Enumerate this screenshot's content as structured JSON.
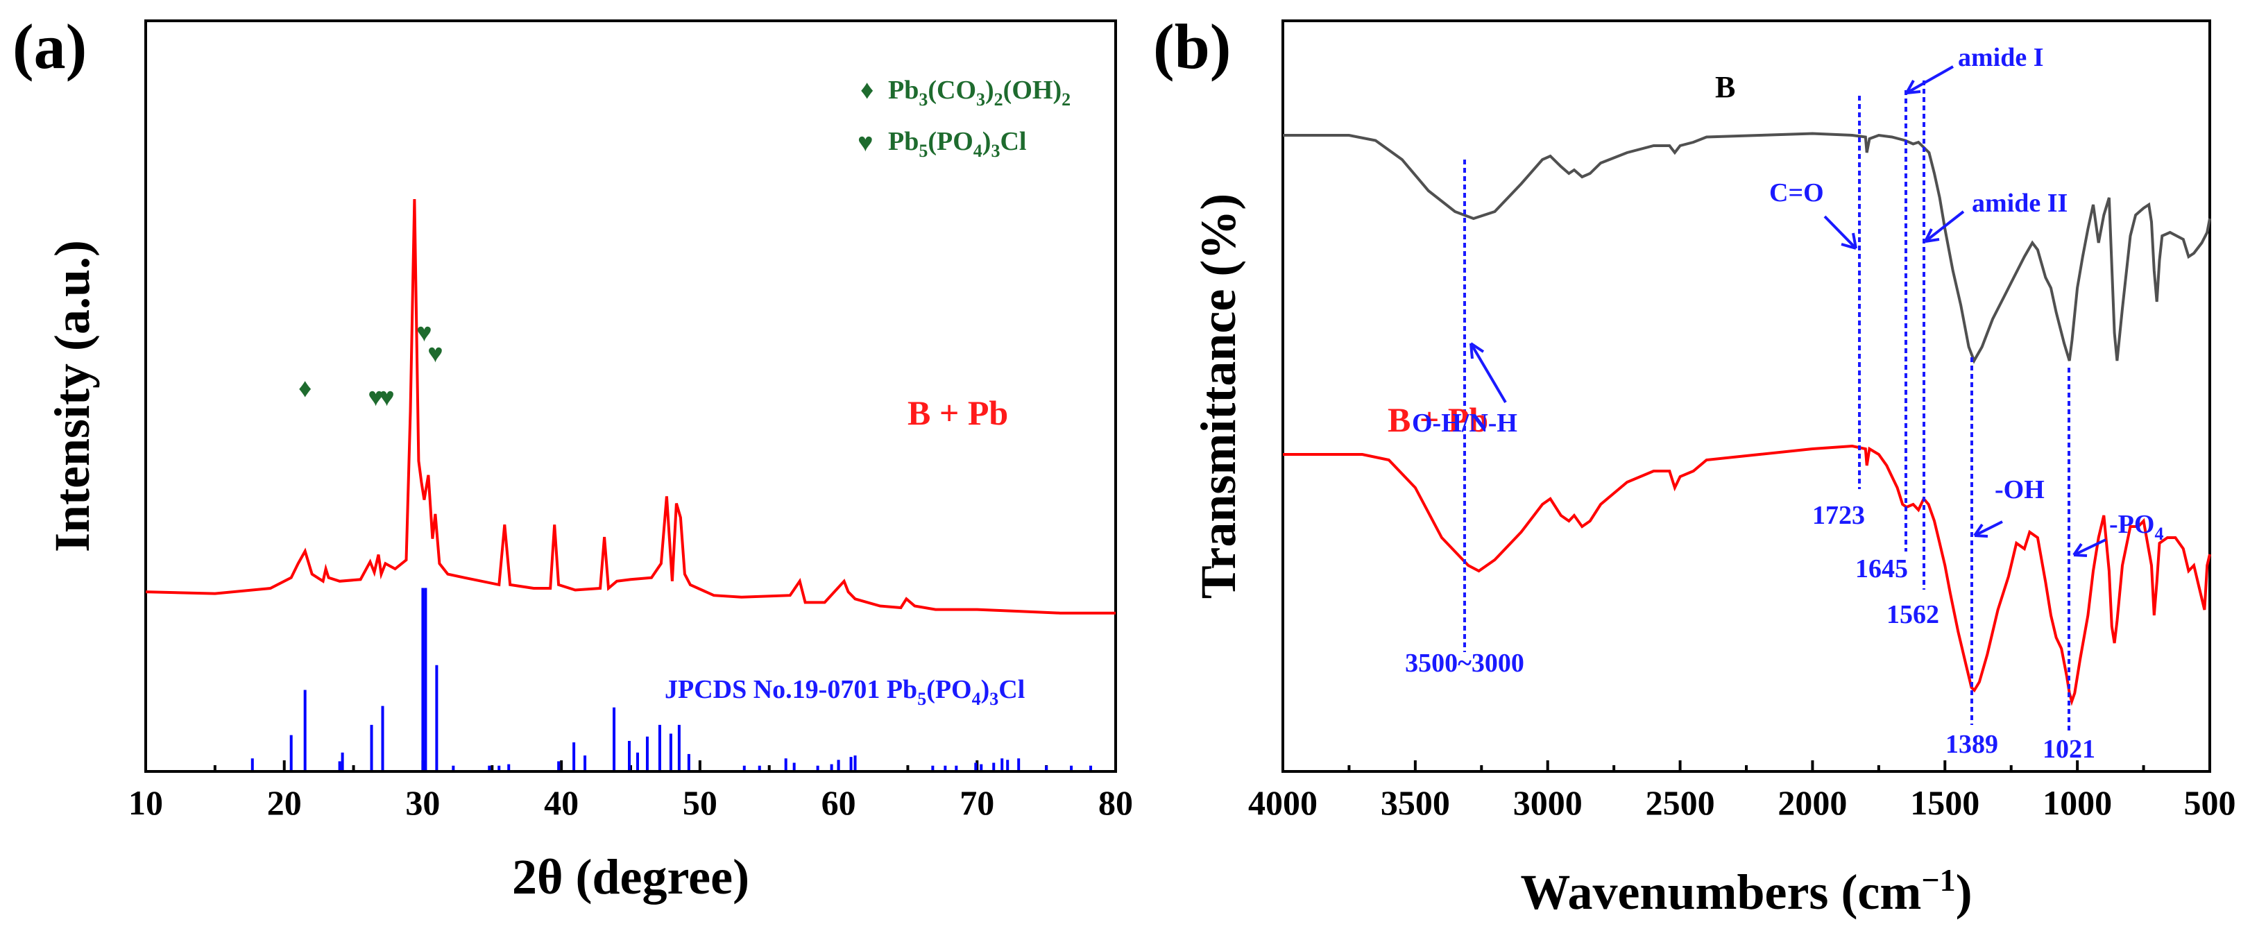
{
  "panel_a": {
    "label": "(a)",
    "xlabel": "2θ (degree)",
    "ylabel": "Intensity (a.u.)",
    "legend": [
      {
        "symbol": "♦",
        "text": "Pb3(CO3)2(OH)2",
        "color": "#1e6b2e"
      },
      {
        "symbol": "♥",
        "text": "Pb5(PO4)3Cl",
        "color": "#1e6b2e"
      }
    ],
    "series_label": "B + Pb",
    "reference_label": "JPCDS No.19-0701 Pb5(PO4)3Cl"
  },
  "panel_b": {
    "label": "(b)",
    "xlabel": "Wavenumbers (cm−1)",
    "ylabel": "Transmittance (%)",
    "series_labels": {
      "B": "B",
      "BPb": "B + Pb"
    },
    "annotations": {
      "oh_nh": "O-H/N-H",
      "range": "3500~3000",
      "co": "C=O",
      "amide1": "amide I",
      "amide2": "amide II",
      "oh": "-OH",
      "po4": "-PO4",
      "p1723": "1723",
      "p1645": "1645",
      "p1562": "1562",
      "p1389": "1389",
      "p1021": "1021"
    }
  },
  "chart_data": [
    {
      "type": "line",
      "panel": "a",
      "xlim": [
        10,
        80
      ],
      "xticks": [
        10,
        20,
        30,
        40,
        50,
        60,
        70,
        80
      ],
      "series": [
        {
          "name": "B + Pb",
          "color": "#ff0000",
          "x": [
            10,
            15,
            19,
            20.5,
            21.0,
            21.5,
            22.0,
            22.8,
            23.0,
            23.2,
            24,
            25.5,
            26.2,
            26.5,
            26.8,
            27.0,
            27.3,
            28.0,
            28.8,
            29.1,
            29.4,
            29.7,
            29.9,
            30.1,
            30.4,
            30.7,
            30.9,
            31.2,
            31.8,
            33,
            35.5,
            35.9,
            36.3,
            38,
            39.2,
            39.5,
            39.8,
            41,
            42.8,
            43.1,
            43.4,
            44,
            45,
            46.5,
            47.2,
            47.6,
            48.0,
            48.3,
            48.6,
            48.9,
            49.3,
            51,
            53,
            56.5,
            57.2,
            57.6,
            59,
            60.4,
            60.7,
            61.2,
            63,
            64.5,
            64.9,
            65.5,
            67,
            70,
            73,
            76,
            80
          ],
          "y": [
            390,
            385,
            400,
            430,
            470,
            505,
            440,
            420,
            455,
            430,
            420,
            425,
            475,
            445,
            495,
            440,
            470,
            455,
            480,
            900,
            1500,
            760,
            700,
            650,
            720,
            540,
            610,
            470,
            440,
            430,
            410,
            580,
            410,
            400,
            400,
            580,
            410,
            395,
            400,
            545,
            400,
            420,
            425,
            430,
            470,
            660,
            420,
            640,
            600,
            440,
            410,
            380,
            375,
            380,
            420,
            360,
            360,
            420,
            390,
            370,
            350,
            345,
            370,
            350,
            340,
            340,
            335,
            330,
            330
          ]
        }
      ],
      "reference": {
        "name": "JPCDS No.19-0701 Pb5(PO4)3Cl",
        "color": "#0000ff",
        "positions": [
          17.7,
          20.5,
          21.5,
          24.0,
          24.2,
          26.3,
          27.1,
          30.0,
          30.2,
          31.0,
          32.2,
          34.8,
          35.5,
          36.2,
          39.8,
          40.9,
          41.7,
          43.8,
          44.9,
          45.5,
          46.2,
          47.1,
          47.9,
          48.5,
          49.2,
          53.2,
          54.3,
          56.2,
          56.8,
          58.5,
          59.5,
          60.0,
          60.9,
          61.2,
          66.8,
          67.7,
          68.5,
          69.9,
          70.3,
          71.2,
          71.8,
          72.2,
          73.0,
          75.0,
          76.8,
          78.2
        ],
        "intensities": [
          8,
          24,
          55,
          6,
          12,
          31,
          44,
          125,
          125,
          72,
          3,
          3,
          3,
          4,
          6,
          19,
          10,
          43,
          20,
          12,
          23,
          31,
          25,
          31,
          11,
          3,
          3,
          8,
          5,
          3,
          4,
          7,
          9,
          10,
          3,
          3,
          3,
          5,
          4,
          5,
          8,
          7,
          8,
          3,
          3,
          3
        ]
      },
      "markers": [
        {
          "symbol": "♦",
          "x": 21.5,
          "label": "Pb3(CO3)2(OH)2"
        },
        {
          "symbol": "♥",
          "x": 26.6,
          "label": "Pb5(PO4)3Cl"
        },
        {
          "symbol": "♥",
          "x": 27.4,
          "label": "Pb5(PO4)3Cl"
        },
        {
          "symbol": "♥",
          "x": 30.1,
          "label": "Pb5(PO4)3Cl"
        },
        {
          "symbol": "♥",
          "x": 30.9,
          "label": "Pb5(PO4)3Cl"
        }
      ]
    },
    {
      "type": "line",
      "panel": "b",
      "xlim": [
        4000,
        500
      ],
      "xticks": [
        4000,
        3500,
        3000,
        2500,
        2000,
        1500,
        1000,
        500
      ],
      "ylim": [
        0,
        100
      ],
      "series": [
        {
          "name": "B",
          "color": "#505050",
          "x": [
            4000,
            3750,
            3650,
            3550,
            3450,
            3350,
            3280,
            3200,
            3100,
            3020,
            2990,
            2950,
            2920,
            2900,
            2870,
            2840,
            2800,
            2700,
            2600,
            2540,
            2520,
            2500,
            2450,
            2400,
            2200,
            2000,
            1850,
            1800,
            1795,
            1785,
            1750,
            1700,
            1650,
            1620,
            1600,
            1560,
            1540,
            1520,
            1500,
            1470,
            1440,
            1410,
            1390,
            1360,
            1320,
            1280,
            1240,
            1200,
            1170,
            1150,
            1120,
            1100,
            1080,
            1050,
            1030,
            1020,
            1000,
            980,
            960,
            940,
            920,
            900,
            880,
            860,
            850,
            830,
            800,
            780,
            750,
            730,
            720,
            710,
            700,
            690,
            680,
            650,
            600,
            580,
            560,
            530,
            510,
            500
          ],
          "y": [
            91,
            91,
            89.5,
            84,
            75,
            69,
            67,
            69,
            77,
            84,
            85,
            82,
            80,
            81,
            79,
            80,
            83,
            86,
            88,
            88,
            86,
            88,
            89,
            90.5,
            91,
            91.5,
            91,
            90.5,
            86,
            90,
            91,
            90.5,
            89.5,
            88.5,
            89,
            86,
            80,
            73,
            64,
            52,
            42,
            30,
            26,
            30,
            38,
            44,
            50,
            56,
            60,
            58,
            50,
            47,
            40,
            31,
            26,
            32,
            47,
            56,
            64,
            71,
            60,
            68,
            73,
            34,
            26,
            41,
            62,
            68,
            70,
            71,
            66,
            52,
            43,
            55,
            62,
            63,
            61,
            56,
            57,
            60,
            63,
            67
          ]
        },
        {
          "name": "B + Pb",
          "color": "#ff0000",
          "x": [
            4000,
            3700,
            3600,
            3500,
            3400,
            3300,
            3260,
            3200,
            3100,
            3020,
            2990,
            2950,
            2920,
            2900,
            2870,
            2840,
            2800,
            2700,
            2600,
            2540,
            2520,
            2500,
            2450,
            2400,
            2200,
            2000,
            1850,
            1800,
            1795,
            1785,
            1750,
            1720,
            1700,
            1680,
            1660,
            1645,
            1620,
            1600,
            1580,
            1562,
            1540,
            1520,
            1500,
            1480,
            1450,
            1420,
            1400,
            1389,
            1370,
            1340,
            1300,
            1260,
            1230,
            1200,
            1180,
            1150,
            1120,
            1100,
            1080,
            1060,
            1040,
            1030,
            1021,
            1010,
            990,
            960,
            940,
            920,
            900,
            880,
            870,
            860,
            850,
            830,
            800,
            770,
            750,
            720,
            710,
            700,
            690,
            660,
            630,
            600,
            580,
            560,
            540,
            520,
            510,
            500
          ],
          "y": [
            45,
            45,
            44,
            39,
            30,
            25,
            24,
            26,
            31,
            36,
            37,
            34,
            33,
            34,
            32,
            33,
            36,
            40,
            42,
            42,
            39,
            41,
            42,
            44,
            45,
            46,
            46.5,
            46,
            43,
            46,
            45,
            43,
            41,
            39,
            36,
            35.5,
            36,
            35,
            37,
            36,
            33,
            29,
            25,
            20,
            13,
            7,
            3,
            2.5,
            4,
            9,
            17,
            23,
            29,
            28,
            31,
            30,
            22,
            16,
            12,
            10,
            5,
            2,
            0.5,
            2,
            8,
            16,
            24,
            30,
            34,
            24,
            14,
            11,
            15,
            25,
            32,
            32,
            33,
            25,
            16,
            22,
            29,
            30,
            30,
            28,
            24,
            25,
            21,
            17,
            25,
            27
          ]
        }
      ]
    }
  ]
}
